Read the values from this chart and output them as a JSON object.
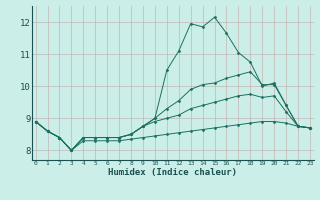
{
  "xlabel": "Humidex (Indice chaleur)",
  "background_color": "#cceee8",
  "grid_color": "#c0a8a8",
  "line_color": "#1a7060",
  "x_ticks": [
    0,
    1,
    2,
    3,
    4,
    5,
    6,
    7,
    8,
    9,
    10,
    11,
    12,
    13,
    14,
    15,
    16,
    17,
    18,
    19,
    20,
    21,
    22,
    23
  ],
  "y_ticks": [
    8,
    9,
    10,
    11,
    12
  ],
  "xlim": [
    -0.3,
    23.3
  ],
  "ylim": [
    7.7,
    12.5
  ],
  "lines": [
    [
      8.9,
      8.6,
      8.4,
      8.0,
      8.4,
      8.4,
      8.4,
      8.4,
      8.5,
      8.75,
      9.0,
      10.5,
      11.1,
      11.95,
      11.85,
      12.15,
      11.65,
      11.05,
      10.75,
      10.0,
      10.1,
      9.4,
      8.75,
      8.7
    ],
    [
      8.9,
      8.6,
      8.4,
      8.0,
      8.4,
      8.4,
      8.4,
      8.4,
      8.5,
      8.75,
      9.0,
      9.3,
      9.55,
      9.9,
      10.05,
      10.1,
      10.25,
      10.35,
      10.45,
      10.05,
      10.05,
      9.4,
      8.75,
      8.7
    ],
    [
      8.9,
      8.6,
      8.4,
      8.0,
      8.4,
      8.4,
      8.4,
      8.4,
      8.5,
      8.75,
      8.9,
      9.0,
      9.1,
      9.3,
      9.4,
      9.5,
      9.6,
      9.7,
      9.75,
      9.65,
      9.7,
      9.2,
      8.75,
      8.7
    ],
    [
      8.9,
      8.6,
      8.4,
      8.0,
      8.3,
      8.3,
      8.3,
      8.3,
      8.35,
      8.4,
      8.45,
      8.5,
      8.55,
      8.6,
      8.65,
      8.7,
      8.75,
      8.8,
      8.85,
      8.9,
      8.9,
      8.85,
      8.75,
      8.7
    ]
  ]
}
